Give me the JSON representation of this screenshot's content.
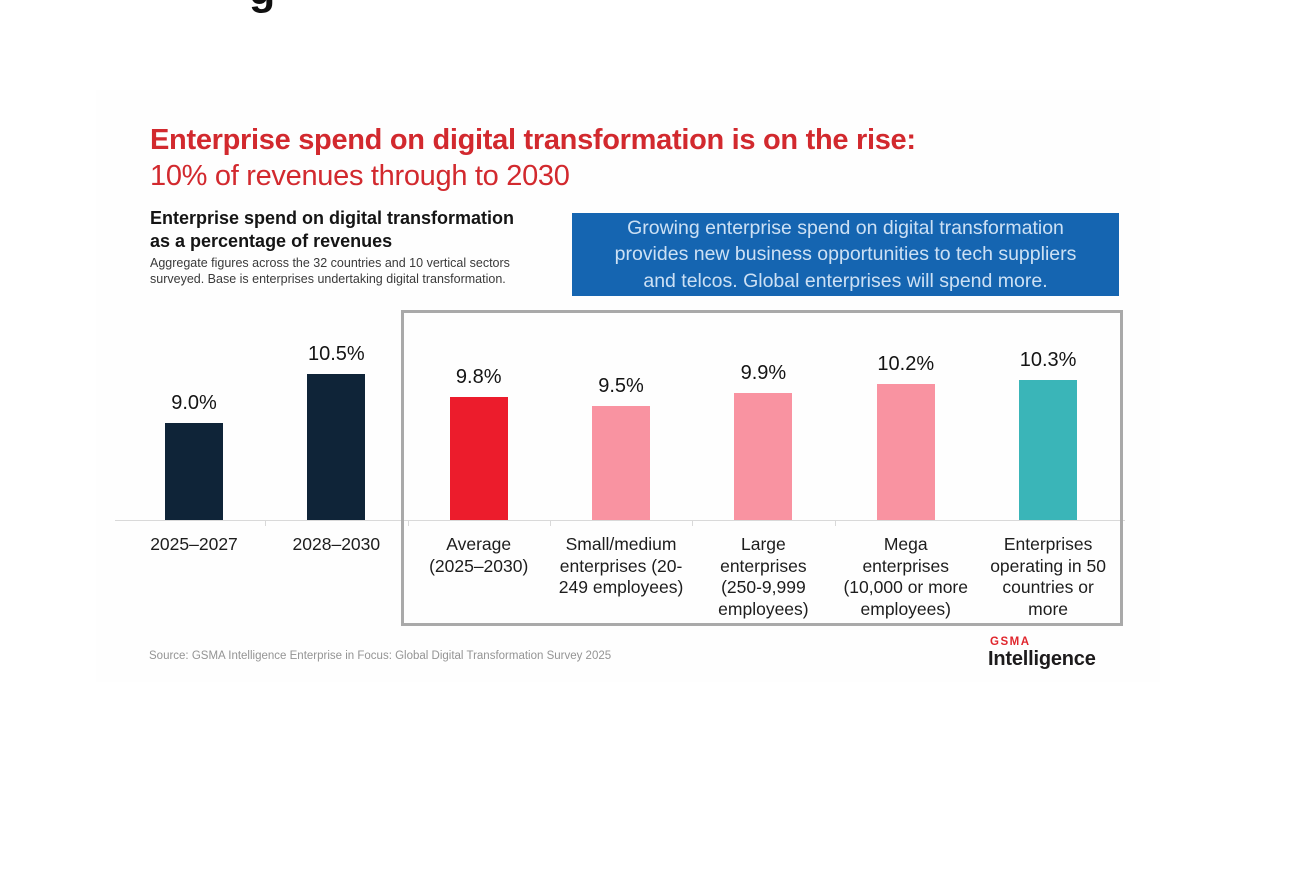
{
  "page": {
    "clipped_glyph": "g"
  },
  "title": {
    "line1": "Enterprise spend on digital transformation is on the rise:",
    "line2": "10% of revenues through to 2030",
    "color": "#d2292e"
  },
  "chart_header": {
    "heading": "Enterprise spend on digital transformation\nas a percentage of revenues",
    "note": "Aggregate figures across the 32 countries and 10 vertical sectors\nsurveyed. Base is enterprises undertaking digital transformation."
  },
  "callout": {
    "text": "Growing enterprise spend on digital transformation\nprovides new business opportunities to tech suppliers\nand telcos. Global enterprises will spend more.",
    "background": "#1565b1",
    "text_color": "#cce0f4"
  },
  "chart_data": {
    "type": "bar",
    "title": "Enterprise spend on digital transformation as a percentage of revenues",
    "xlabel": "",
    "ylabel": "",
    "categories": [
      "2025–2027",
      "2028–2030",
      "Average\n(2025–2030)",
      "Small/medium\nenterprises (20-\n249 employees)",
      "Large\nenterprises\n(250-9,999\nemployees)",
      "Mega\nenterprises\n(10,000 or more\nemployees)",
      "Enterprises\noperating in 50\ncountries or\nmore"
    ],
    "values": [
      9.0,
      10.5,
      9.8,
      9.5,
      9.9,
      10.2,
      10.3
    ],
    "value_labels": [
      "9.0%",
      "10.5%",
      "9.8%",
      "9.5%",
      "9.9%",
      "10.2%",
      "10.3%"
    ],
    "bar_colors": [
      "#0f2438",
      "#0f2438",
      "#ec1c2c",
      "#f993a1",
      "#f993a1",
      "#f993a1",
      "#3ab5b8"
    ],
    "unit": "%",
    "y_baseline": 6,
    "ylim": [
      6,
      11.5
    ],
    "grid": false,
    "legend": false,
    "annotation": "Last five bars (Average through Enterprises operating in 50 countries or more) are enclosed in a gray outline box"
  },
  "source": {
    "text": "Source: GSMA Intelligence Enterprise in Focus: Global Digital Transformation Survey 2025"
  },
  "logo": {
    "brand": "GSMA",
    "sub": "Intelligence",
    "brand_color": "#e0262d"
  }
}
